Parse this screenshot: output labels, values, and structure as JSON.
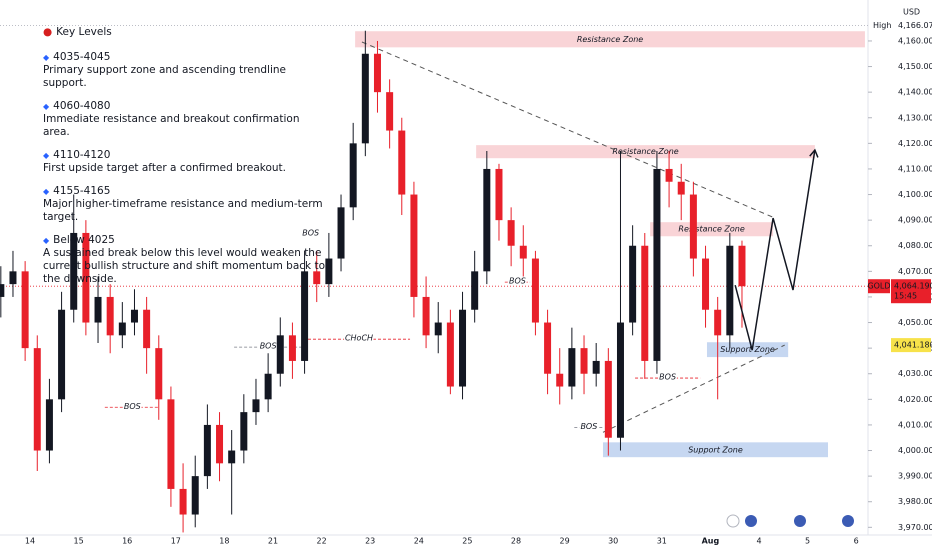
{
  "notes": {
    "title": "Key Levels",
    "items": [
      {
        "level": "4035-4045",
        "text": "Primary support zone and ascending trendline support."
      },
      {
        "level": "4060-4080",
        "text": "Immediate resistance and breakout confirmation area."
      },
      {
        "level": "4110-4120",
        "text": "First upside target after a confirmed breakout."
      },
      {
        "level": "4155-4165",
        "text": "Major higher-timeframe resistance and medium-term target."
      },
      {
        "level": "Below 4025",
        "text": "A sustained break below this level would weaken the current bullish structure and shift momentum back to the downside."
      }
    ]
  },
  "chart_data": {
    "type": "candlestick",
    "currency": "USD",
    "categories": [
      "14",
      "15",
      "16",
      "17",
      "18",
      "21",
      "22",
      "23",
      "24",
      "25",
      "28",
      "29",
      "30",
      "31",
      "Aug",
      "4",
      "5",
      "6"
    ],
    "xlim": [
      -0.617,
      17.243
    ],
    "ylim": [
      3967,
      4176
    ],
    "yticks": [
      {
        "value": 3970,
        "label": "3,970.000"
      },
      {
        "value": 3980,
        "label": "3,980.000"
      },
      {
        "value": 3990,
        "label": "3,990.000"
      },
      {
        "value": 4000,
        "label": "4,000.000"
      },
      {
        "value": 4010,
        "label": "4,010.000"
      },
      {
        "value": 4020,
        "label": "4,020.000"
      },
      {
        "value": 4030,
        "label": "4,030.000"
      },
      {
        "value": 4040,
        "label": "4,040.000"
      },
      {
        "value": 4050,
        "label": "4,050.000"
      },
      {
        "value": 4060,
        "label": "4,060.000"
      },
      {
        "value": 4070,
        "label": "4,070.000"
      },
      {
        "value": 4080,
        "label": "4,080.000"
      },
      {
        "value": 4090,
        "label": "4,090.000"
      },
      {
        "value": 4100,
        "label": "4,100.000"
      },
      {
        "value": 4110,
        "label": "4,110.000"
      },
      {
        "value": 4120,
        "label": "4,120.000"
      },
      {
        "value": 4130,
        "label": "4,130.000"
      },
      {
        "value": 4140,
        "label": "4,140.000"
      },
      {
        "value": 4150,
        "label": "4,150.000"
      },
      {
        "value": 4160,
        "label": "4,160.000"
      }
    ],
    "up_color": "#131722",
    "down_color": "#e8202a",
    "candles": [
      {
        "x": -0.6,
        "open": 4060,
        "close": 4065,
        "high": 4072,
        "low": 4052
      },
      {
        "x": -0.35,
        "open": 4065,
        "close": 4070,
        "high": 4078,
        "low": 4060
      },
      {
        "x": -0.1,
        "open": 4070,
        "close": 4040,
        "high": 4074,
        "low": 4035
      },
      {
        "x": 0.15,
        "open": 4040,
        "close": 4000,
        "high": 4045,
        "low": 3992
      },
      {
        "x": 0.4,
        "open": 4000,
        "close": 4020,
        "high": 4028,
        "low": 3995
      },
      {
        "x": 0.65,
        "open": 4020,
        "close": 4055,
        "high": 4062,
        "low": 4015
      },
      {
        "x": 0.9,
        "open": 4055,
        "close": 4085,
        "high": 4100,
        "low": 4050
      },
      {
        "x": 1.15,
        "open": 4085,
        "close": 4050,
        "high": 4090,
        "low": 4045
      },
      {
        "x": 1.4,
        "open": 4050,
        "close": 4060,
        "high": 4068,
        "low": 4042
      },
      {
        "x": 1.65,
        "open": 4060,
        "close": 4045,
        "high": 4065,
        "low": 4038
      },
      {
        "x": 1.9,
        "open": 4045,
        "close": 4050,
        "high": 4058,
        "low": 4040
      },
      {
        "x": 2.15,
        "open": 4050,
        "close": 4055,
        "high": 4063,
        "low": 4045
      },
      {
        "x": 2.4,
        "open": 4055,
        "close": 4040,
        "high": 4060,
        "low": 4030
      },
      {
        "x": 2.65,
        "open": 4040,
        "close": 4020,
        "high": 4045,
        "low": 4012
      },
      {
        "x": 2.9,
        "open": 4020,
        "close": 3985,
        "high": 4025,
        "low": 3978
      },
      {
        "x": 3.15,
        "open": 3985,
        "close": 3975,
        "high": 3995,
        "low": 3968
      },
      {
        "x": 3.4,
        "open": 3975,
        "close": 3990,
        "high": 3998,
        "low": 3970
      },
      {
        "x": 3.65,
        "open": 3990,
        "close": 4010,
        "high": 4018,
        "low": 3985
      },
      {
        "x": 3.9,
        "open": 4010,
        "close": 3995,
        "high": 4015,
        "low": 3988
      },
      {
        "x": 4.15,
        "open": 3995,
        "close": 4000,
        "high": 4008,
        "low": 3975
      },
      {
        "x": 4.4,
        "open": 4000,
        "close": 4015,
        "high": 4022,
        "low": 3995
      },
      {
        "x": 4.65,
        "open": 4015,
        "close": 4020,
        "high": 4028,
        "low": 4010
      },
      {
        "x": 4.9,
        "open": 4020,
        "close": 4030,
        "high": 4038,
        "low": 4015
      },
      {
        "x": 5.15,
        "open": 4030,
        "close": 4045,
        "high": 4052,
        "low": 4025
      },
      {
        "x": 5.4,
        "open": 4045,
        "close": 4035,
        "high": 4050,
        "low": 4028
      },
      {
        "x": 5.65,
        "open": 4035,
        "close": 4070,
        "high": 4078,
        "low": 4030
      },
      {
        "x": 5.9,
        "open": 4070,
        "close": 4065,
        "high": 4078,
        "low": 4058
      },
      {
        "x": 6.15,
        "open": 4065,
        "close": 4075,
        "high": 4085,
        "low": 4060
      },
      {
        "x": 6.4,
        "open": 4075,
        "close": 4095,
        "high": 4100,
        "low": 4070
      },
      {
        "x": 6.65,
        "open": 4095,
        "close": 4120,
        "high": 4128,
        "low": 4090
      },
      {
        "x": 6.9,
        "open": 4120,
        "close": 4155,
        "high": 4164,
        "low": 4115
      },
      {
        "x": 7.15,
        "open": 4155,
        "close": 4140,
        "high": 4160,
        "low": 4132
      },
      {
        "x": 7.4,
        "open": 4140,
        "close": 4125,
        "high": 4145,
        "low": 4118
      },
      {
        "x": 7.65,
        "open": 4125,
        "close": 4100,
        "high": 4130,
        "low": 4092
      },
      {
        "x": 7.9,
        "open": 4100,
        "close": 4060,
        "high": 4105,
        "low": 4052
      },
      {
        "x": 8.15,
        "open": 4060,
        "close": 4045,
        "high": 4068,
        "low": 4040
      },
      {
        "x": 8.4,
        "open": 4045,
        "close": 4050,
        "high": 4058,
        "low": 4038
      },
      {
        "x": 8.65,
        "open": 4050,
        "close": 4025,
        "high": 4055,
        "low": 4022
      },
      {
        "x": 8.9,
        "open": 4025,
        "close": 4055,
        "high": 4062,
        "low": 4020
      },
      {
        "x": 9.15,
        "open": 4055,
        "close": 4070,
        "high": 4078,
        "low": 4050
      },
      {
        "x": 9.4,
        "open": 4070,
        "close": 4110,
        "high": 4117,
        "low": 4065
      },
      {
        "x": 9.65,
        "open": 4110,
        "close": 4090,
        "high": 4112,
        "low": 4082
      },
      {
        "x": 9.9,
        "open": 4090,
        "close": 4080,
        "high": 4095,
        "low": 4072
      },
      {
        "x": 10.15,
        "open": 4080,
        "close": 4075,
        "high": 4088,
        "low": 4068
      },
      {
        "x": 10.4,
        "open": 4075,
        "close": 4050,
        "high": 4078,
        "low": 4045
      },
      {
        "x": 10.65,
        "open": 4050,
        "close": 4030,
        "high": 4055,
        "low": 4022
      },
      {
        "x": 10.9,
        "open": 4030,
        "close": 4025,
        "high": 4040,
        "low": 4018
      },
      {
        "x": 11.15,
        "open": 4025,
        "close": 4040,
        "high": 4048,
        "low": 4020
      },
      {
        "x": 11.4,
        "open": 4040,
        "close": 4030,
        "high": 4045,
        "low": 4022
      },
      {
        "x": 11.65,
        "open": 4030,
        "close": 4035,
        "high": 4042,
        "low": 4025
      },
      {
        "x": 11.9,
        "open": 4035,
        "close": 4005,
        "high": 4040,
        "low": 3998
      },
      {
        "x": 12.15,
        "open": 4005,
        "close": 4050,
        "high": 4117,
        "low": 4000
      },
      {
        "x": 12.4,
        "open": 4050,
        "close": 4080,
        "high": 4088,
        "low": 4045
      },
      {
        "x": 12.65,
        "open": 4080,
        "close": 4035,
        "high": 4085,
        "low": 4028
      },
      {
        "x": 12.9,
        "open": 4035,
        "close": 4110,
        "high": 4117,
        "low": 4030
      },
      {
        "x": 13.15,
        "open": 4110,
        "close": 4105,
        "high": 4117,
        "low": 4095
      },
      {
        "x": 13.4,
        "open": 4105,
        "close": 4100,
        "high": 4112,
        "low": 4090
      },
      {
        "x": 13.65,
        "open": 4100,
        "close": 4075,
        "high": 4105,
        "low": 4068
      },
      {
        "x": 13.9,
        "open": 4075,
        "close": 4055,
        "high": 4080,
        "low": 4048
      },
      {
        "x": 14.15,
        "open": 4055,
        "close": 4045,
        "high": 4060,
        "low": 4020
      },
      {
        "x": 14.4,
        "open": 4045,
        "close": 4080,
        "high": 4085,
        "low": 4040
      },
      {
        "x": 14.65,
        "open": 4080,
        "close": 4064.19,
        "high": 4082,
        "low": 4048
      }
    ],
    "zones": [
      {
        "label": "Resistance Zone",
        "x": [
          6.69,
          17.18
        ],
        "y": [
          4157.5,
          4163.8
        ],
        "color": "#f8cdd0"
      },
      {
        "label": "Resistance Zone",
        "x": [
          9.18,
          16.15
        ],
        "y": [
          4114.2,
          4119.3
        ],
        "color": "#f8cdd0"
      },
      {
        "label": "Resistance Zone",
        "x": [
          12.76,
          15.29
        ],
        "y": [
          4083.7,
          4089.2
        ],
        "color": "#f8cdd0"
      },
      {
        "label": "Support Zone",
        "x": [
          13.93,
          15.6
        ],
        "y": [
          4036.5,
          4042.3
        ],
        "color": "#bcd0ee"
      },
      {
        "label": "Support Zone",
        "x": [
          11.79,
          16.42
        ],
        "y": [
          3997.4,
          4003.2
        ],
        "color": "#bcd0ee"
      }
    ],
    "trendlines": [
      {
        "x": [
          6.83,
          15.33
        ],
        "y": [
          4159.6,
          4090.8
        ],
        "color": "#555555"
      },
      {
        "x": [
          11.79,
          15.53
        ],
        "y": [
          4007.1,
          4041.2
        ],
        "color": "#555555"
      }
    ],
    "projection": {
      "x": [
        14.51,
        14.86,
        15.29,
        15.7,
        16.15
      ],
      "y": [
        4064.6,
        4039.2,
        4090.8,
        4062.7,
        4117.4
      ],
      "color": "#131722"
    },
    "levels": [
      {
        "label": "BOS",
        "price": 4016.9,
        "x": [
          1.54,
          2.67
        ],
        "color": "#e8202a"
      },
      {
        "label": "BOS",
        "price": 4084.5,
        "x": [
          5.6,
          5.95
        ],
        "color": "#787b86"
      },
      {
        "label": "BOS",
        "price": 4040.4,
        "x": [
          4.2,
          5.6
        ],
        "color": "#787b86"
      },
      {
        "label": "CHoCH",
        "price": 4043.5,
        "x": [
          5.72,
          7.82
        ],
        "color": "#e8202a"
      },
      {
        "label": "BOS",
        "price": 4065.8,
        "x": [
          9.77,
          10.29
        ],
        "color": "#e8202a"
      },
      {
        "label": "BOS",
        "price": 4028.3,
        "x": [
          12.45,
          13.79
        ],
        "color": "#e8202a"
      },
      {
        "label": "BOS",
        "price": 4009,
        "x": [
          11.2,
          11.8
        ],
        "color": "#787b86"
      }
    ],
    "last_price": {
      "symbol": "GOLD",
      "value": 4064.19,
      "label": "4,064.190",
      "time": "15:45",
      "color": "#e8202a"
    },
    "marker": {
      "value": 4041.18,
      "label": "4,041.180",
      "color": "#f7e24a"
    },
    "high": {
      "text": "High",
      "value": 4166.07,
      "label": "4,166.070"
    }
  }
}
